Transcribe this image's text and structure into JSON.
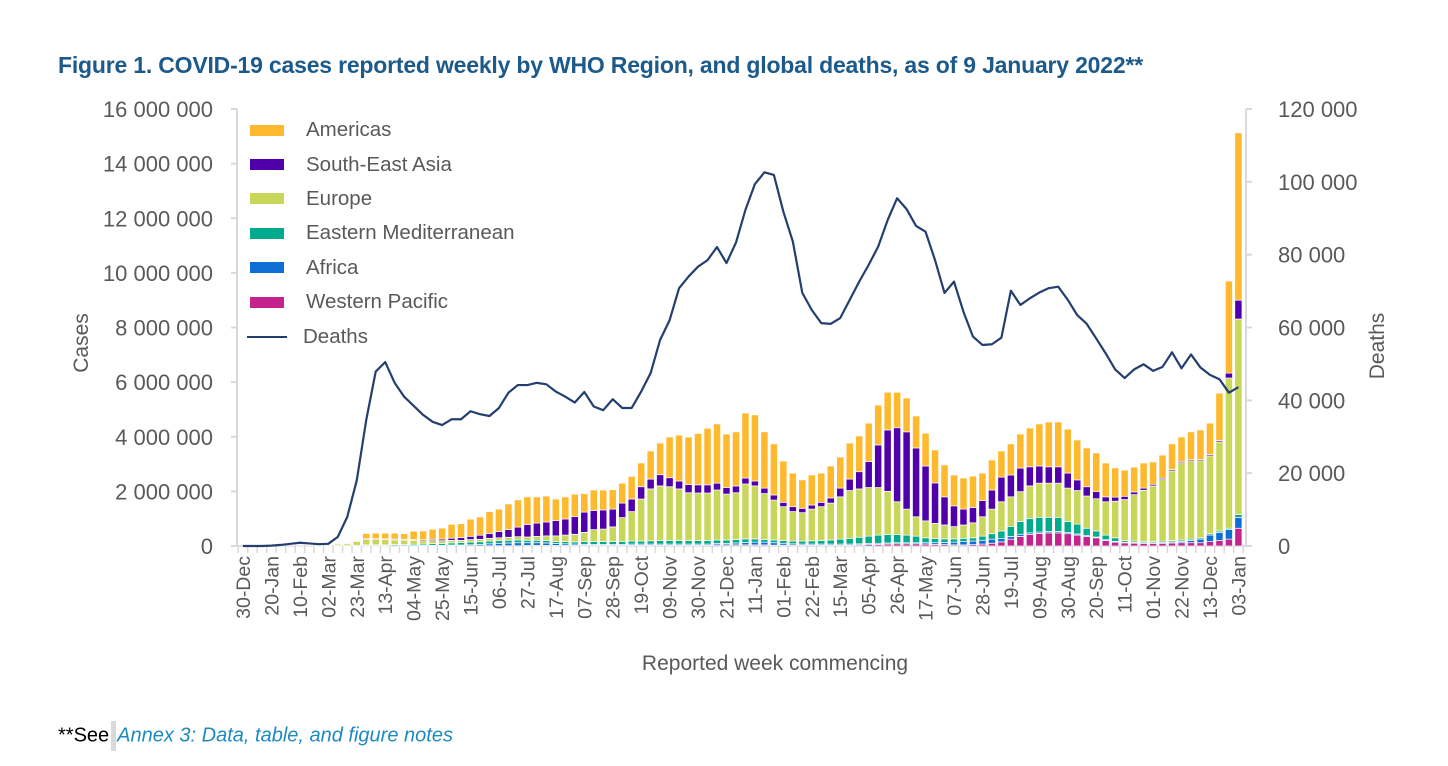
{
  "title": "Figure 1. COVID-19 cases reported weekly by WHO Region, and global deaths, as of 9 January 2022**",
  "footnote": {
    "prefix": "**See",
    "link": "Annex 3: Data, table, and figure notes"
  },
  "chart_data": {
    "type": "bar",
    "stacked": true,
    "xlabel": "Reported week commencing",
    "ylabel": "Cases",
    "y2label": "Deaths",
    "ylim": [
      0,
      16000000
    ],
    "y2lim": [
      0,
      120000
    ],
    "y_tick_labels": [
      "0",
      "2 000 000",
      "4 000 000",
      "6 000 000",
      "8 000 000",
      "10 000 000",
      "12 000 000",
      "14 000 000",
      "16 000 000"
    ],
    "y2_tick_labels": [
      "0",
      "20 000",
      "40 000",
      "60 000",
      "80 000",
      "100 000",
      "120 000"
    ],
    "legend_placement": "top-left",
    "grid": false,
    "categories": [
      "30-Dec",
      "06-Jan",
      "13-Jan",
      "20-Jan",
      "27-Jan",
      "03-Feb",
      "10-Feb",
      "17-Feb",
      "24-Feb",
      "02-Mar",
      "09-Mar",
      "16-Mar",
      "23-Mar",
      "30-Mar",
      "06-Apr",
      "13-Apr",
      "20-Apr",
      "27-Apr",
      "04-May",
      "11-May",
      "18-May",
      "25-May",
      "01-Jun",
      "08-Jun",
      "15-Jun",
      "22-Jun",
      "29-Jun",
      "06-Jul",
      "13-Jul",
      "20-Jul",
      "27-Jul",
      "03-Aug",
      "10-Aug",
      "17-Aug",
      "24-Aug",
      "31-Aug",
      "07-Sep",
      "14-Sep",
      "21-Sep",
      "28-Sep",
      "05-Oct",
      "12-Oct",
      "19-Oct",
      "26-Oct",
      "02-Nov",
      "09-Nov",
      "16-Nov",
      "23-Nov",
      "30-Nov",
      "07-Dec",
      "14-Dec",
      "21-Dec",
      "28-Dec",
      "04-Jan",
      "11-Jan",
      "18-Jan",
      "25-Jan",
      "01-Feb",
      "08-Feb",
      "15-Feb",
      "22-Feb",
      "01-Mar",
      "08-Mar",
      "15-Mar",
      "22-Mar",
      "29-Mar",
      "05-Apr",
      "12-Apr",
      "19-Apr",
      "26-Apr",
      "03-May",
      "10-May",
      "17-May",
      "24-May",
      "31-May",
      "07-Jun",
      "14-Jun",
      "21-Jun",
      "28-Jun",
      "05-Jul",
      "12-Jul",
      "19-Jul",
      "26-Jul",
      "02-Aug",
      "09-Aug",
      "16-Aug",
      "23-Aug",
      "30-Aug",
      "06-Sep",
      "13-Sep",
      "20-Sep",
      "27-Sep",
      "04-Oct",
      "11-Oct",
      "18-Oct",
      "25-Oct",
      "01-Nov",
      "08-Nov",
      "15-Nov",
      "22-Nov",
      "29-Nov",
      "06-Dec",
      "13-Dec",
      "20-Dec",
      "27-Dec",
      "03-Jan"
    ],
    "series": [
      {
        "name": "Western Pacific",
        "color": "#c4238e",
        "values": [
          0,
          0,
          2000,
          10000,
          20000,
          25000,
          15000,
          10000,
          10000,
          10000,
          10000,
          5000,
          5000,
          5000,
          5000,
          5000,
          5000,
          5000,
          5000,
          5000,
          5000,
          5000,
          5000,
          5000,
          5000,
          5000,
          10000,
          10000,
          10000,
          10000,
          20000,
          20000,
          20000,
          20000,
          20000,
          20000,
          20000,
          20000,
          20000,
          20000,
          20000,
          30000,
          30000,
          30000,
          30000,
          30000,
          30000,
          30000,
          30000,
          30000,
          40000,
          40000,
          40000,
          40000,
          40000,
          40000,
          30000,
          30000,
          30000,
          30000,
          30000,
          30000,
          30000,
          30000,
          30000,
          40000,
          50000,
          60000,
          70000,
          80000,
          80000,
          80000,
          70000,
          60000,
          50000,
          40000,
          40000,
          50000,
          70000,
          100000,
          150000,
          250000,
          350000,
          420000,
          460000,
          480000,
          480000,
          450000,
          400000,
          350000,
          300000,
          200000,
          150000,
          120000,
          110000,
          100000,
          100000,
          100000,
          110000,
          120000,
          120000,
          120000,
          160000,
          200000,
          250000,
          650000
        ]
      },
      {
        "name": "Africa",
        "color": "#0d6fd6",
        "values": [
          0,
          0,
          0,
          0,
          0,
          0,
          0,
          0,
          0,
          0,
          0,
          0,
          1000,
          5000,
          5000,
          5000,
          5000,
          10000,
          10000,
          15000,
          20000,
          20000,
          30000,
          30000,
          40000,
          50000,
          70000,
          90000,
          100000,
          110000,
          100000,
          100000,
          90000,
          70000,
          60000,
          50000,
          40000,
          40000,
          40000,
          40000,
          40000,
          40000,
          40000,
          40000,
          40000,
          40000,
          40000,
          40000,
          40000,
          40000,
          50000,
          50000,
          70000,
          90000,
          100000,
          100000,
          90000,
          70000,
          50000,
          40000,
          40000,
          40000,
          40000,
          40000,
          40000,
          40000,
          40000,
          40000,
          40000,
          40000,
          40000,
          40000,
          50000,
          60000,
          80000,
          100000,
          120000,
          130000,
          140000,
          150000,
          120000,
          100000,
          80000,
          60000,
          50000,
          50000,
          50000,
          40000,
          40000,
          30000,
          30000,
          30000,
          20000,
          20000,
          20000,
          20000,
          20000,
          30000,
          40000,
          50000,
          80000,
          130000,
          240000,
          300000,
          350000,
          400000
        ]
      },
      {
        "name": "Eastern Mediterranean",
        "color": "#00aa8c",
        "values": [
          0,
          0,
          0,
          0,
          0,
          0,
          0,
          0,
          5000,
          10000,
          10000,
          10000,
          20000,
          30000,
          30000,
          30000,
          40000,
          40000,
          50000,
          50000,
          60000,
          70000,
          80000,
          90000,
          100000,
          100000,
          100000,
          100000,
          100000,
          100000,
          90000,
          90000,
          90000,
          80000,
          80000,
          80000,
          100000,
          100000,
          100000,
          100000,
          110000,
          110000,
          110000,
          120000,
          130000,
          130000,
          130000,
          130000,
          130000,
          130000,
          130000,
          130000,
          130000,
          130000,
          120000,
          100000,
          100000,
          100000,
          100000,
          110000,
          120000,
          130000,
          150000,
          180000,
          210000,
          240000,
          270000,
          300000,
          310000,
          300000,
          280000,
          240000,
          180000,
          150000,
          130000,
          120000,
          120000,
          120000,
          150000,
          200000,
          280000,
          370000,
          470000,
          520000,
          540000,
          520000,
          520000,
          410000,
          360000,
          270000,
          220000,
          170000,
          130000,
          60000,
          50000,
          50000,
          50000,
          50000,
          50000,
          50000,
          50000,
          50000,
          50000,
          50000,
          50000,
          100000
        ]
      },
      {
        "name": "Europe",
        "color": "#c8d65a",
        "values": [
          0,
          0,
          0,
          0,
          0,
          0,
          0,
          0,
          5000,
          30000,
          70000,
          80000,
          170000,
          220000,
          220000,
          210000,
          190000,
          170000,
          140000,
          120000,
          110000,
          100000,
          90000,
          80000,
          90000,
          90000,
          100000,
          100000,
          110000,
          120000,
          120000,
          140000,
          170000,
          200000,
          240000,
          280000,
          340000,
          440000,
          460000,
          540000,
          870000,
          1080000,
          1540000,
          1900000,
          2000000,
          1970000,
          1890000,
          1750000,
          1740000,
          1740000,
          1830000,
          1680000,
          1710000,
          2010000,
          1940000,
          1680000,
          1460000,
          1240000,
          1080000,
          1040000,
          1160000,
          1240000,
          1350000,
          1550000,
          1750000,
          1770000,
          1780000,
          1740000,
          1580000,
          1200000,
          950000,
          710000,
          620000,
          560000,
          510000,
          450000,
          490000,
          550000,
          710000,
          900000,
          1070000,
          1080000,
          1090000,
          1200000,
          1250000,
          1250000,
          1250000,
          1220000,
          1230000,
          1180000,
          1180000,
          1220000,
          1340000,
          1500000,
          1700000,
          1870000,
          2030000,
          2250000,
          2550000,
          2830000,
          2870000,
          2820000,
          2850000,
          3260000,
          5500000,
          7160000
        ]
      },
      {
        "name": "South-East Asia",
        "color": "#5000aa",
        "values": [
          0,
          0,
          0,
          0,
          0,
          0,
          0,
          0,
          0,
          0,
          0,
          0,
          1000,
          5000,
          10000,
          10000,
          10000,
          20000,
          30000,
          40000,
          50000,
          60000,
          80000,
          100000,
          120000,
          150000,
          180000,
          230000,
          280000,
          350000,
          460000,
          490000,
          510000,
          560000,
          590000,
          650000,
          740000,
          700000,
          700000,
          650000,
          530000,
          460000,
          450000,
          360000,
          410000,
          330000,
          290000,
          300000,
          300000,
          300000,
          250000,
          240000,
          250000,
          220000,
          180000,
          200000,
          190000,
          160000,
          180000,
          160000,
          150000,
          160000,
          190000,
          320000,
          420000,
          630000,
          950000,
          1560000,
          2250000,
          2710000,
          2830000,
          2520000,
          2010000,
          1480000,
          1030000,
          760000,
          580000,
          560000,
          590000,
          700000,
          900000,
          800000,
          860000,
          700000,
          630000,
          600000,
          600000,
          550000,
          390000,
          340000,
          260000,
          180000,
          150000,
          120000,
          100000,
          80000,
          60000,
          50000,
          50000,
          50000,
          50000,
          50000,
          50000,
          50000,
          180000,
          690000
        ]
      },
      {
        "name": "Americas",
        "color": "#ffb92f",
        "values": [
          0,
          0,
          0,
          0,
          0,
          0,
          0,
          0,
          0,
          0,
          5000,
          10000,
          10000,
          195000,
          200000,
          210000,
          220000,
          210000,
          310000,
          320000,
          370000,
          400000,
          510000,
          510000,
          630000,
          670000,
          800000,
          820000,
          940000,
          1000000,
          1010000,
          960000,
          950000,
          790000,
          810000,
          820000,
          680000,
          750000,
          730000,
          710000,
          730000,
          830000,
          870000,
          1030000,
          1160000,
          1490000,
          1680000,
          1740000,
          1880000,
          2070000,
          2170000,
          1960000,
          1980000,
          2380000,
          2420000,
          2060000,
          1870000,
          1510000,
          1230000,
          1040000,
          1100000,
          1070000,
          1170000,
          1140000,
          1320000,
          1310000,
          1410000,
          1460000,
          1380000,
          1300000,
          1240000,
          1170000,
          1200000,
          1210000,
          1170000,
          1130000,
          1140000,
          1150000,
          1010000,
          1100000,
          960000,
          1140000,
          1250000,
          1420000,
          1540000,
          1640000,
          1640000,
          1610000,
          1460000,
          1420000,
          1420000,
          1240000,
          1070000,
          960000,
          910000,
          920000,
          820000,
          850000,
          940000,
          890000,
          1010000,
          1080000,
          1150000,
          1740000,
          3370000,
          6130000
        ]
      }
    ],
    "deaths": {
      "name": "Deaths",
      "color": "#243f6e",
      "axis": "right",
      "values": [
        0,
        0,
        0,
        100,
        300,
        600,
        900,
        700,
        500,
        600,
        2500,
        8000,
        18000,
        34600,
        47900,
        50500,
        44800,
        41000,
        38500,
        36000,
        34100,
        33200,
        34800,
        34800,
        37000,
        36200,
        35700,
        37900,
        42100,
        44200,
        44200,
        44800,
        44400,
        42400,
        41000,
        39400,
        42300,
        38300,
        37300,
        40300,
        37900,
        37900,
        42400,
        47500,
        56600,
        62000,
        70800,
        74000,
        76700,
        78500,
        82100,
        77700,
        83300,
        92300,
        99400,
        102600,
        101900,
        91800,
        83600,
        69500,
        64800,
        61200,
        61000,
        62600,
        67600,
        72600,
        77200,
        82200,
        89500,
        95500,
        92500,
        87900,
        86300,
        78500,
        69500,
        72600,
        64300,
        57500,
        55200,
        55400,
        57200,
        70100,
        66200,
        68000,
        69600,
        70800,
        71200,
        67600,
        63400,
        61000,
        57000,
        52900,
        48500,
        46100,
        48500,
        49900,
        48100,
        49200,
        53200,
        48800,
        52600,
        49000,
        47000,
        45800,
        42100,
        43600
      ]
    },
    "legend_order": [
      "Americas",
      "South-East Asia",
      "Europe",
      "Eastern Mediterranean",
      "Africa",
      "Western Pacific",
      "Deaths"
    ]
  }
}
